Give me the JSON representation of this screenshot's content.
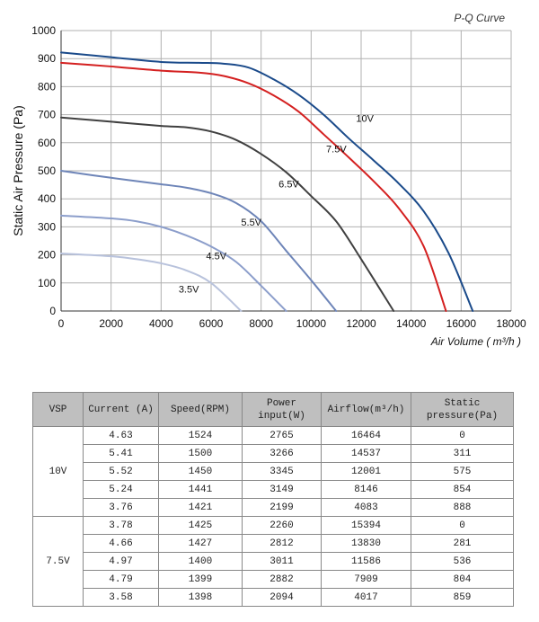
{
  "chart_data": {
    "type": "line",
    "title": "P-Q Curve",
    "xlabel": "Air Volume ( m³/h )",
    "ylabel": "Static Air Pressure (Pa)",
    "xlim": [
      0,
      18000
    ],
    "ylim": [
      0,
      1000
    ],
    "x_ticks": [
      "0",
      "2000",
      "4000",
      "6000",
      "8000",
      "10000",
      "12000",
      "14000",
      "16000",
      "18000"
    ],
    "y_ticks": [
      "0",
      "100",
      "200",
      "300",
      "400",
      "500",
      "600",
      "700",
      "800",
      "900",
      "1000"
    ],
    "grid": true,
    "series": [
      {
        "name": "10V",
        "color": "#1a4a8a",
        "x": [
          0,
          2000,
          4000,
          5500,
          6500,
          7500,
          8500,
          9500,
          10500,
          11500,
          12500,
          13500,
          14500,
          15500,
          16464
        ],
        "y": [
          922,
          905,
          888,
          885,
          882,
          868,
          826,
          771,
          700,
          616,
          537,
          455,
          356,
          206,
          0
        ]
      },
      {
        "name": "7.5V",
        "color": "#d42020",
        "x": [
          0,
          2000,
          4000,
          5500,
          6500,
          7500,
          8500,
          9500,
          10500,
          11500,
          12500,
          13500,
          14500,
          15394
        ],
        "y": [
          885,
          872,
          857,
          850,
          838,
          812,
          769,
          711,
          630,
          548,
          463,
          367,
          231,
          0
        ]
      },
      {
        "name": "6.5V",
        "color": "#404040",
        "x": [
          0,
          2000,
          4000,
          5000,
          6000,
          7000,
          8000,
          9000,
          10000,
          11000,
          12000,
          13300
        ],
        "y": [
          690,
          675,
          660,
          655,
          640,
          610,
          560,
          495,
          410,
          320,
          185,
          0
        ]
      },
      {
        "name": "5.5V",
        "color": "#6e85b8",
        "x": [
          0,
          2000,
          4000,
          5000,
          6000,
          7000,
          8000,
          9000,
          10000,
          11000
        ],
        "y": [
          500,
          475,
          452,
          440,
          420,
          385,
          320,
          215,
          110,
          0
        ]
      },
      {
        "name": "4.5V",
        "color": "#8c9ecb",
        "x": [
          0,
          2000,
          3000,
          4000,
          5000,
          6000,
          7000,
          8000,
          9000
        ],
        "y": [
          340,
          330,
          320,
          300,
          270,
          230,
          175,
          90,
          0
        ]
      },
      {
        "name": "3.5V",
        "color": "#b8c2dc",
        "x": [
          0,
          2000,
          3000,
          4000,
          5000,
          6000,
          7200
        ],
        "y": [
          205,
          195,
          185,
          170,
          145,
          100,
          0
        ]
      }
    ],
    "labels": [
      {
        "text": "10V",
        "x": 11800,
        "y": 675
      },
      {
        "text": "7.5V",
        "x": 10600,
        "y": 565
      },
      {
        "text": "6.5V",
        "x": 8700,
        "y": 440
      },
      {
        "text": "5.5V",
        "x": 7200,
        "y": 305
      },
      {
        "text": "4.5V",
        "x": 5800,
        "y": 185
      },
      {
        "text": "3.5V",
        "x": 4700,
        "y": 65
      }
    ]
  },
  "table": {
    "headers": [
      "VSP",
      "Current (A)",
      "Speed(RPM)",
      "Power input(W)",
      "Airflow(m³/h)",
      "Static pressure(Pa)"
    ],
    "groups": [
      {
        "vsp": "10V",
        "rows": [
          [
            "4.63",
            "1524",
            "2765",
            "16464",
            "0"
          ],
          [
            "5.41",
            "1500",
            "3266",
            "14537",
            "311"
          ],
          [
            "5.52",
            "1450",
            "3345",
            "12001",
            "575"
          ],
          [
            "5.24",
            "1441",
            "3149",
            "8146",
            "854"
          ],
          [
            "3.76",
            "1421",
            "2199",
            "4083",
            "888"
          ]
        ]
      },
      {
        "vsp": "7.5V",
        "rows": [
          [
            "3.78",
            "1425",
            "2260",
            "15394",
            "0"
          ],
          [
            "4.66",
            "1427",
            "2812",
            "13830",
            "281"
          ],
          [
            "4.97",
            "1400",
            "3011",
            "11586",
            "536"
          ],
          [
            "4.79",
            "1399",
            "2882",
            "7909",
            "804"
          ],
          [
            "3.58",
            "1398",
            "2094",
            "4017",
            "859"
          ]
        ]
      }
    ]
  }
}
